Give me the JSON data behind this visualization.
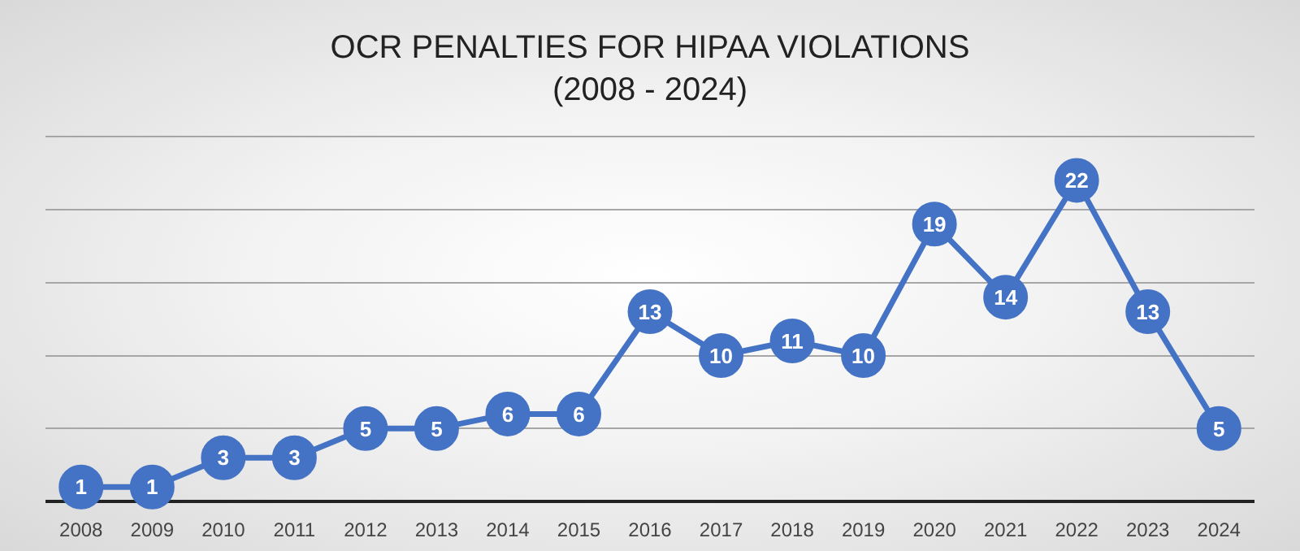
{
  "chart_data": {
    "type": "line",
    "title": "OCR PENALTIES FOR HIPAA VIOLATIONS",
    "subtitle": "(2008 - 2024)",
    "categories": [
      "2008",
      "2009",
      "2010",
      "2011",
      "2012",
      "2013",
      "2014",
      "2015",
      "2016",
      "2017",
      "2018",
      "2019",
      "2020",
      "2021",
      "2022",
      "2023",
      "2024"
    ],
    "series": [
      {
        "color": "#4472c4",
        "values": [
          1,
          1,
          3,
          3,
          5,
          5,
          6,
          6,
          13,
          10,
          11,
          10,
          19,
          14,
          22,
          13,
          5
        ]
      }
    ],
    "ylim": [
      0,
      25
    ],
    "yticks": [
      {
        "value": 0,
        "label": null
      },
      {
        "value": 5,
        "label": null
      },
      {
        "value": 10,
        "label": null
      },
      {
        "value": 15,
        "label": null
      },
      {
        "value": 20,
        "label": null
      },
      {
        "value": 25,
        "label": null
      }
    ],
    "grid": "y",
    "tick_labels": "x",
    "legend": false,
    "marker": "circle",
    "line_style": "solid",
    "data_labels": true
  }
}
